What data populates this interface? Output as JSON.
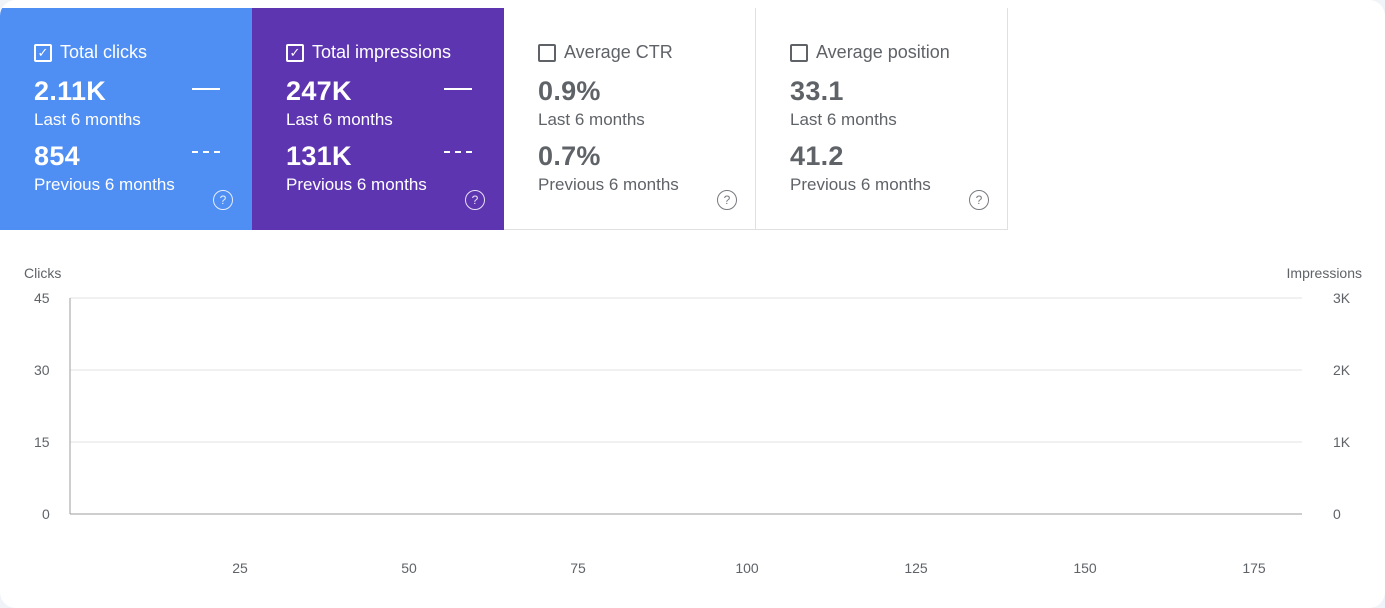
{
  "cards": [
    {
      "title": "Total clicks",
      "checked": true,
      "value1": "2.11K",
      "label1": "Last 6 months",
      "value2": "854",
      "label2": "Previous 6 months",
      "help": "?"
    },
    {
      "title": "Total impressions",
      "checked": true,
      "value1": "247K",
      "label1": "Last 6 months",
      "value2": "131K",
      "label2": "Previous 6 months",
      "help": "?"
    },
    {
      "title": "Average CTR",
      "checked": false,
      "value1": "0.9%",
      "label1": "Last 6 months",
      "value2": "0.7%",
      "label2": "Previous 6 months",
      "help": "?"
    },
    {
      "title": "Average position",
      "checked": false,
      "value1": "33.1",
      "label1": "Last 6 months",
      "value2": "41.2",
      "label2": "Previous 6 months",
      "help": "?"
    }
  ],
  "colors": {
    "clicks": "#4f8ef3",
    "impressions": "#5e35b1"
  },
  "chart_data": {
    "type": "line",
    "ylabel_left": "Clicks",
    "ylabel_right": "Impressions",
    "yticks_left": [
      "45",
      "30",
      "15",
      "0"
    ],
    "yticks_right": [
      "3K",
      "2K",
      "1K",
      "0"
    ],
    "ylim_left": [
      0,
      45
    ],
    "ylim_right": [
      0,
      3000
    ],
    "xticks": [
      "25",
      "50",
      "75",
      "100",
      "125",
      "150",
      "175"
    ],
    "xlim": [
      1,
      183
    ],
    "grid": true,
    "series": []
  }
}
